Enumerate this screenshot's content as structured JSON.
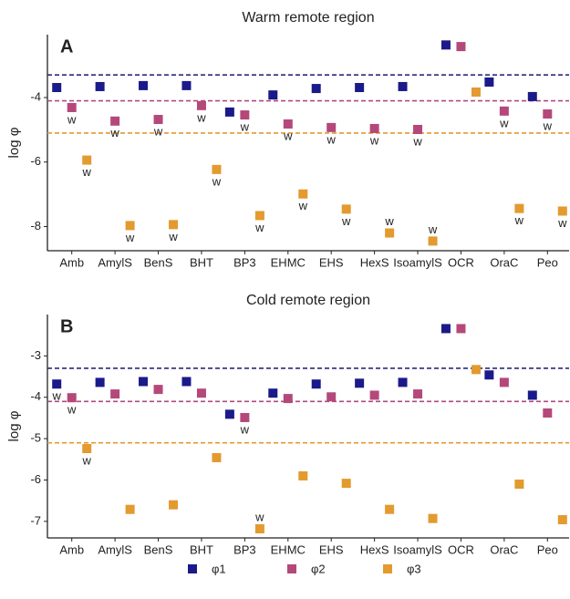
{
  "chart_data": [
    {
      "type": "scatter",
      "title": "Warm remote region",
      "panel_label": "A",
      "ylabel": "log φ",
      "categories": [
        "Amb",
        "AmylS",
        "BenS",
        "BHT",
        "BP3",
        "EHMC",
        "EHS",
        "HexS",
        "IsoamylS",
        "OCR",
        "OraC",
        "Peo"
      ],
      "ylim": [
        -8.75,
        -2.05
      ],
      "yticks": [
        -4,
        -6,
        -8
      ],
      "reference_lines": [
        {
          "value": -3.3,
          "color": "#2c2a7a"
        },
        {
          "value": -4.1,
          "color": "#b04a80"
        },
        {
          "value": -5.1,
          "color": "#e39a2e"
        }
      ],
      "series": [
        {
          "name": "φ1",
          "color": "#1b1a8a",
          "values": [
            -3.69,
            -3.66,
            -3.63,
            -3.63,
            -4.45,
            -3.92,
            -3.72,
            -3.69,
            -3.66,
            -2.37,
            -3.52,
            -3.97
          ],
          "point_labels": [
            null,
            null,
            null,
            null,
            null,
            null,
            null,
            null,
            null,
            null,
            null,
            null
          ]
        },
        {
          "name": "φ2",
          "color": "#b5487a",
          "values": [
            -4.31,
            -4.73,
            -4.68,
            -4.25,
            -4.54,
            -4.82,
            -4.93,
            -4.96,
            -4.99,
            -2.42,
            -4.42,
            -4.51
          ],
          "point_labels": [
            "w",
            "w",
            "w",
            "w",
            "w",
            "w",
            "w",
            "w",
            "w",
            null,
            "w",
            "w"
          ]
        },
        {
          "name": "φ3",
          "color": "#e39a2e",
          "values": [
            -5.94,
            -7.97,
            -7.94,
            -6.23,
            -7.66,
            -6.99,
            -7.46,
            -8.2,
            -8.45,
            -3.83,
            -7.44,
            -7.52
          ],
          "point_labels": [
            "w",
            "w",
            "w",
            "w",
            "w",
            "w",
            "w",
            "w",
            "w",
            null,
            "w",
            "w"
          ]
        }
      ]
    },
    {
      "type": "scatter",
      "title": "Cold remote region",
      "panel_label": "B",
      "ylabel": "log φ",
      "categories": [
        "Amb",
        "AmylS",
        "BenS",
        "BHT",
        "BP3",
        "EHMC",
        "EHS",
        "HexS",
        "IsoamylS",
        "OCR",
        "OraC",
        "Peo"
      ],
      "ylim": [
        -7.4,
        -2.0
      ],
      "yticks": [
        -3,
        -4,
        -5,
        -6,
        -7
      ],
      "reference_lines": [
        {
          "value": -3.3,
          "color": "#2c2a7a"
        },
        {
          "value": -4.1,
          "color": "#b04a80"
        },
        {
          "value": -5.1,
          "color": "#e39a2e"
        }
      ],
      "series": [
        {
          "color": "#1b1a8a",
          "values": [
            -3.68,
            -3.64,
            -3.62,
            -3.62,
            -4.41,
            -3.9,
            -3.68,
            -3.66,
            -3.64,
            -2.34,
            -3.46,
            -3.95
          ],
          "point_labels": [
            "w",
            null,
            null,
            null,
            null,
            null,
            null,
            null,
            null,
            null,
            null,
            null
          ]
        },
        {
          "color": "#b5487a",
          "values": [
            -4.01,
            -3.92,
            -3.81,
            -3.9,
            -4.49,
            -4.03,
            -3.99,
            -3.95,
            -3.92,
            -2.34,
            -3.64,
            -4.38
          ],
          "point_labels": [
            "w",
            null,
            null,
            null,
            "w",
            null,
            null,
            null,
            null,
            null,
            null,
            null
          ]
        },
        {
          "color": "#e39a2e",
          "values": [
            -5.24,
            -6.71,
            -6.6,
            -5.46,
            -7.18,
            -5.9,
            -6.08,
            -6.71,
            -6.93,
            -3.33,
            -6.1,
            -6.96
          ],
          "point_labels": [
            "w",
            null,
            null,
            null,
            "w",
            null,
            null,
            null,
            null,
            null,
            null,
            null
          ]
        }
      ]
    }
  ]
}
